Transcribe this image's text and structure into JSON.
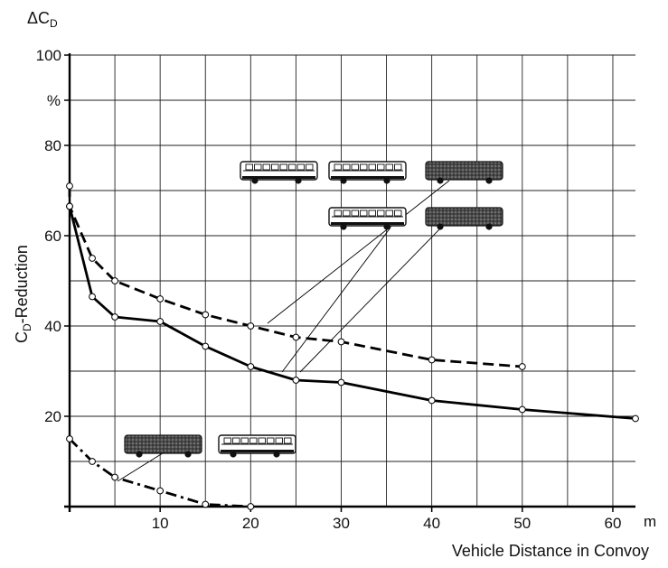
{
  "chart_data": {
    "type": "line",
    "title": "",
    "ylabel_corner": "ΔC",
    "ylabel_corner_sub": "D",
    "ylabel_main": "C",
    "ylabel_main_sub": "D",
    "ylabel_main_suffix": "-Reduction",
    "y_unit_label": "%",
    "xlabel": "Vehicle Distance in Convoy",
    "x_unit_label": "m",
    "xlim": [
      0,
      62.5
    ],
    "ylim": [
      0,
      100
    ],
    "x_ticks": [
      10,
      20,
      30,
      40,
      50,
      60
    ],
    "x_tick_labels": [
      "10",
      "20",
      "30",
      "40",
      "50",
      "60"
    ],
    "y_ticks": [
      20,
      40,
      60,
      80,
      100
    ],
    "y_tick_labels": [
      "20",
      "40",
      "60",
      "80",
      "100"
    ],
    "grid": true,
    "series": [
      {
        "style": "dashed",
        "configuration": "three buses: white, white, dark",
        "x": [
          0,
          0,
          2.5,
          5,
          10,
          15,
          20,
          25,
          30,
          40,
          50
        ],
        "y": [
          71,
          66.5,
          55,
          50,
          46,
          42.5,
          40,
          37.5,
          36.5,
          32.5,
          31
        ]
      },
      {
        "style": "solid",
        "configuration": "two buses: white, dark",
        "x": [
          0,
          2.5,
          5,
          10,
          15,
          20,
          25,
          30,
          40,
          50,
          62.5
        ],
        "y": [
          66.5,
          46.5,
          42,
          41,
          35.5,
          31,
          28,
          27.5,
          23.5,
          21.5,
          19.5
        ]
      },
      {
        "style": "dash-dot",
        "configuration": "two buses: dark, white",
        "x": [
          0,
          2.5,
          5,
          10,
          15,
          20
        ],
        "y": [
          15,
          10,
          6.5,
          3.5,
          0.5,
          0
        ]
      }
    ],
    "bus_icons": [
      {
        "color": "white"
      },
      {
        "color": "white"
      },
      {
        "color": "dark"
      },
      {
        "color": "white"
      },
      {
        "color": "dark"
      },
      {
        "color": "dark"
      },
      {
        "color": "white"
      }
    ]
  }
}
